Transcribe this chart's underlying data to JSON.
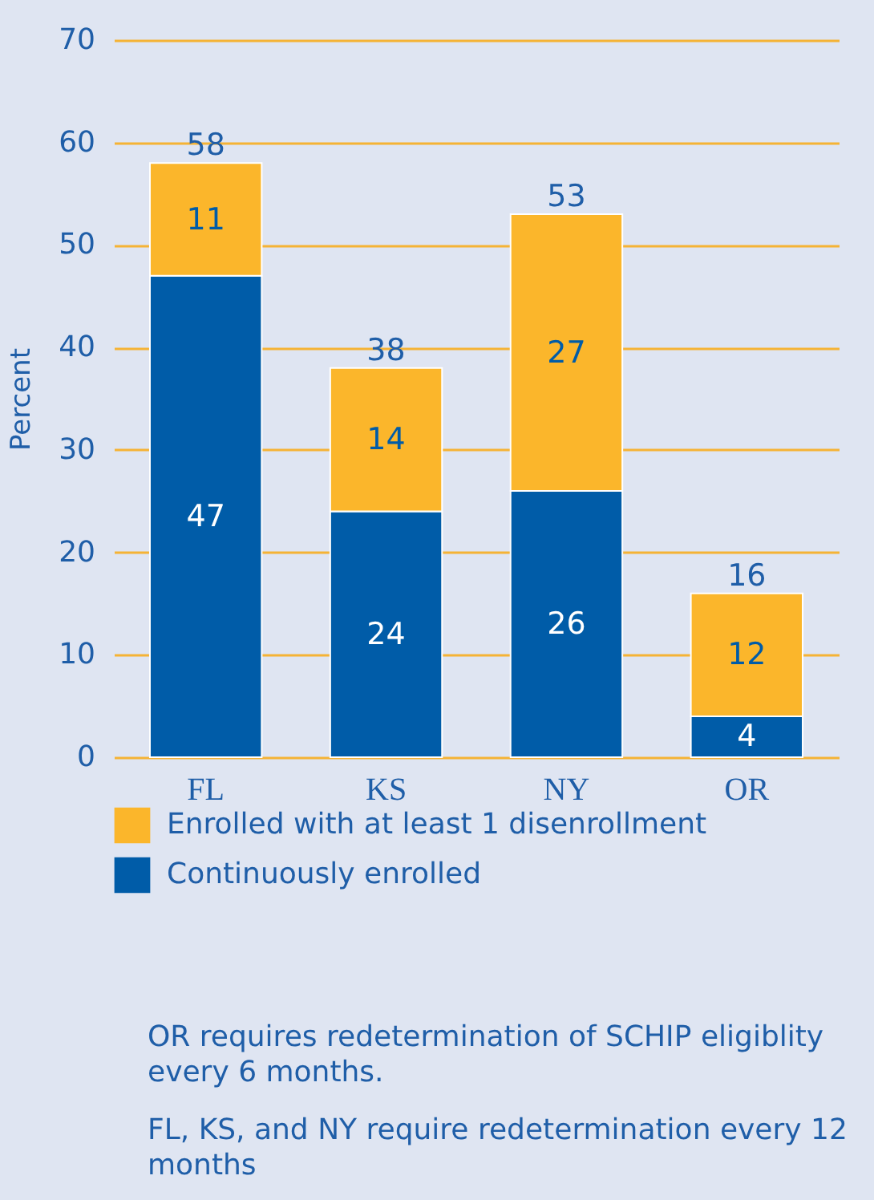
{
  "chart_data": {
    "type": "bar",
    "stacked": true,
    "ylabel": "Percent",
    "categories": [
      "FL",
      "KS",
      "NY",
      "OR"
    ],
    "series": [
      {
        "name": "Continuously enrolled",
        "color": "#005ca8",
        "values": [
          47,
          24,
          26,
          4
        ]
      },
      {
        "name": "Enrolled with at least 1 disenrollment",
        "color": "#fbb62b",
        "values": [
          11,
          14,
          27,
          12
        ]
      }
    ],
    "totals": [
      "58",
      "38",
      "53",
      "16"
    ],
    "data_labels": true,
    "ylim": [
      0,
      70
    ],
    "yticks": [
      0,
      10,
      20,
      30,
      40,
      50,
      60,
      70
    ],
    "grid": "y",
    "legend": "bottom",
    "annotations": [
      "OR requires redetermination of SCHIP eligiblity every 6 months.",
      "FL, KS, and NY require redetermination every 12 months"
    ]
  }
}
